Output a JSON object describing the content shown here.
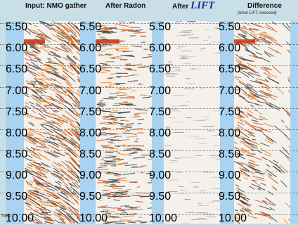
{
  "panels": [
    {
      "title": "Input: NMO gather"
    },
    {
      "title": "After Radon"
    },
    {
      "title_prefix": "After",
      "title_emph": "LIFT"
    },
    {
      "title": "Difference",
      "subtitle": "(what LIFT removed)"
    }
  ],
  "axis": {
    "label": "Time",
    "ticks": [
      "5.50",
      "6.00",
      "6.50",
      "7.00",
      "7.50",
      "8.00",
      "8.50",
      "9.00",
      "9.50",
      "10.00"
    ]
  }
}
